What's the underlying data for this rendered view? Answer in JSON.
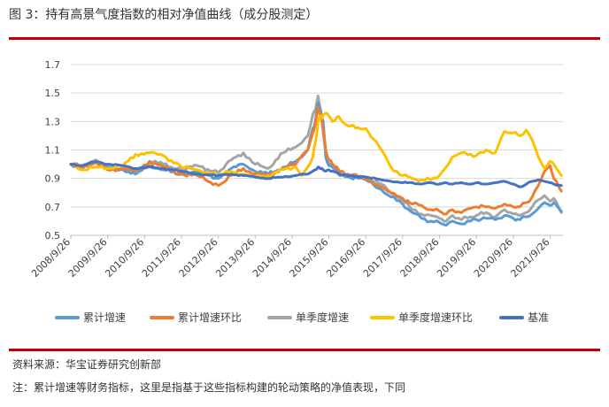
{
  "header": {
    "title": "图 3：持有高景气度指数的相对净值曲线（成分股测定）"
  },
  "footer": {
    "source": "资料来源：华宝证券研究创新部",
    "note": "注：累计增速等财务指标，这里是指基于这些指标构建的轮动策略的净值表现，下同"
  },
  "chart_data": {
    "type": "line",
    "title": "",
    "xlabel": "",
    "ylabel": "",
    "ylim": [
      0.5,
      1.7
    ],
    "yticks": [
      "0.5",
      "0.7",
      "0.9",
      "1.1",
      "1.3",
      "1.5",
      "1.7"
    ],
    "xticks": [
      "2008/9/26",
      "2009/9/26",
      "2010/9/26",
      "2011/9/26",
      "2012/9/26",
      "2013/9/26",
      "2014/9/26",
      "2015/9/26",
      "2016/9/26",
      "2017/9/26",
      "2018/9/26",
      "2019/9/26",
      "2020/9/26",
      "2021/9/26"
    ],
    "xlim": [
      "2008/9/26",
      "2022/1/31"
    ],
    "grid": "horizontal",
    "legend_position": "bottom",
    "series": [
      {
        "name": "累计增速",
        "color": "#5b9bd5",
        "points": [
          [
            "2008/9/26",
            1.0
          ],
          [
            "2009/1/15",
            0.97
          ],
          [
            "2009/6/1",
            1.02
          ],
          [
            "2009/9/26",
            0.98
          ],
          [
            "2010/3/1",
            0.96
          ],
          [
            "2010/7/1",
            0.93
          ],
          [
            "2010/11/15",
            0.99
          ],
          [
            "2011/4/1",
            0.96
          ],
          [
            "2011/9/26",
            0.93
          ],
          [
            "2012/3/1",
            0.95
          ],
          [
            "2012/9/26",
            0.9
          ],
          [
            "2013/2/1",
            0.97
          ],
          [
            "2013/6/1",
            1.0
          ],
          [
            "2013/9/26",
            0.95
          ],
          [
            "2014/2/1",
            0.93
          ],
          [
            "2014/7/1",
            0.98
          ],
          [
            "2014/11/1",
            1.02
          ],
          [
            "2015/1/1",
            1.05
          ],
          [
            "2015/3/1",
            1.1
          ],
          [
            "2015/4/20",
            1.25
          ],
          [
            "2015/5/15",
            1.3
          ],
          [
            "2015/6/12",
            1.43
          ],
          [
            "2015/7/1",
            1.38
          ],
          [
            "2015/7/20",
            1.33
          ],
          [
            "2015/8/1",
            1.3
          ],
          [
            "2015/8/26",
            1.05
          ],
          [
            "2015/9/26",
            0.99
          ],
          [
            "2015/11/1",
            0.98
          ],
          [
            "2015/12/15",
            0.96
          ],
          [
            "2016/1/15",
            0.92
          ],
          [
            "2016/4/1",
            0.91
          ],
          [
            "2016/9/26",
            0.89
          ],
          [
            "2017/3/1",
            0.82
          ],
          [
            "2017/6/1",
            0.77
          ],
          [
            "2017/9/26",
            0.72
          ],
          [
            "2018/1/1",
            0.66
          ],
          [
            "2018/4/1",
            0.62
          ],
          [
            "2018/7/1",
            0.6
          ],
          [
            "2018/9/26",
            0.59
          ],
          [
            "2018/12/1",
            0.57
          ],
          [
            "2019/2/1",
            0.6
          ],
          [
            "2019/5/1",
            0.58
          ],
          [
            "2019/8/1",
            0.6
          ],
          [
            "2019/9/26",
            0.61
          ],
          [
            "2020/1/1",
            0.62
          ],
          [
            "2020/4/1",
            0.61
          ],
          [
            "2020/7/1",
            0.64
          ],
          [
            "2020/9/26",
            0.62
          ],
          [
            "2020/12/1",
            0.61
          ],
          [
            "2021/2/1",
            0.63
          ],
          [
            "2021/4/1",
            0.65
          ],
          [
            "2021/6/1",
            0.69
          ],
          [
            "2021/8/1",
            0.73
          ],
          [
            "2021/9/26",
            0.71
          ],
          [
            "2021/11/1",
            0.73
          ],
          [
            "2022/1/15",
            0.67
          ]
        ]
      },
      {
        "name": "累计增速环比",
        "color": "#ed7d31",
        "points": [
          [
            "2008/9/26",
            1.0
          ],
          [
            "2009/1/15",
            0.98
          ],
          [
            "2009/6/1",
            1.01
          ],
          [
            "2009/9/26",
            0.96
          ],
          [
            "2010/3/1",
            0.97
          ],
          [
            "2010/7/1",
            0.95
          ],
          [
            "2010/11/15",
            1.02
          ],
          [
            "2011/4/1",
            0.98
          ],
          [
            "2011/9/26",
            0.93
          ],
          [
            "2012/3/1",
            0.92
          ],
          [
            "2012/9/26",
            0.85
          ],
          [
            "2013/2/1",
            0.92
          ],
          [
            "2013/6/1",
            0.97
          ],
          [
            "2013/9/26",
            0.93
          ],
          [
            "2014/2/1",
            0.92
          ],
          [
            "2014/7/1",
            0.97
          ],
          [
            "2014/11/1",
            1.0
          ],
          [
            "2015/1/1",
            1.06
          ],
          [
            "2015/3/1",
            1.1
          ],
          [
            "2015/4/20",
            1.22
          ],
          [
            "2015/5/15",
            1.28
          ],
          [
            "2015/6/12",
            1.4
          ],
          [
            "2015/7/1",
            1.35
          ],
          [
            "2015/7/20",
            1.3
          ],
          [
            "2015/8/1",
            1.25
          ],
          [
            "2015/8/26",
            1.1
          ],
          [
            "2015/9/26",
            1.03
          ],
          [
            "2015/11/1",
            1.0
          ],
          [
            "2015/12/15",
            0.98
          ],
          [
            "2016/1/15",
            0.95
          ],
          [
            "2016/4/1",
            0.93
          ],
          [
            "2016/9/26",
            0.9
          ],
          [
            "2017/3/1",
            0.84
          ],
          [
            "2017/6/1",
            0.8
          ],
          [
            "2017/9/26",
            0.76
          ],
          [
            "2018/1/1",
            0.72
          ],
          [
            "2018/4/1",
            0.71
          ],
          [
            "2018/7/1",
            0.68
          ],
          [
            "2018/9/26",
            0.67
          ],
          [
            "2018/12/1",
            0.65
          ],
          [
            "2019/2/1",
            0.68
          ],
          [
            "2019/5/1",
            0.66
          ],
          [
            "2019/8/1",
            0.69
          ],
          [
            "2019/9/26",
            0.7
          ],
          [
            "2020/1/1",
            0.7
          ],
          [
            "2020/4/1",
            0.69
          ],
          [
            "2020/7/1",
            0.72
          ],
          [
            "2020/9/26",
            0.7
          ],
          [
            "2020/12/1",
            0.7
          ],
          [
            "2021/2/1",
            0.73
          ],
          [
            "2021/4/1",
            0.77
          ],
          [
            "2021/6/1",
            0.85
          ],
          [
            "2021/8/1",
            0.95
          ],
          [
            "2021/9/26",
            0.99
          ],
          [
            "2021/11/1",
            0.9
          ],
          [
            "2022/1/15",
            0.81
          ]
        ]
      },
      {
        "name": "单季度增速",
        "color": "#a5a5a5",
        "points": [
          [
            "2008/9/26",
            1.0
          ],
          [
            "2009/1/15",
            0.99
          ],
          [
            "2009/6/1",
            1.03
          ],
          [
            "2009/9/26",
            0.97
          ],
          [
            "2010/3/1",
            0.96
          ],
          [
            "2010/7/1",
            0.93
          ],
          [
            "2010/11/15",
            1.02
          ],
          [
            "2011/4/1",
            1.0
          ],
          [
            "2011/9/26",
            0.96
          ],
          [
            "2012/3/1",
            0.99
          ],
          [
            "2012/9/26",
            0.94
          ],
          [
            "2013/2/1",
            1.03
          ],
          [
            "2013/6/1",
            1.08
          ],
          [
            "2013/9/26",
            1.0
          ],
          [
            "2014/2/1",
            0.97
          ],
          [
            "2014/7/1",
            1.08
          ],
          [
            "2014/11/1",
            1.12
          ],
          [
            "2015/1/1",
            1.15
          ],
          [
            "2015/3/1",
            1.2
          ],
          [
            "2015/4/20",
            1.35
          ],
          [
            "2015/5/15",
            1.38
          ],
          [
            "2015/6/12",
            1.48
          ],
          [
            "2015/7/1",
            1.4
          ],
          [
            "2015/7/20",
            1.32
          ],
          [
            "2015/8/1",
            1.22
          ],
          [
            "2015/8/26",
            1.08
          ],
          [
            "2015/9/26",
            1.0
          ],
          [
            "2015/11/1",
            0.98
          ],
          [
            "2015/12/15",
            0.95
          ],
          [
            "2016/1/15",
            0.93
          ],
          [
            "2016/4/1",
            0.92
          ],
          [
            "2016/9/26",
            0.91
          ],
          [
            "2017/3/1",
            0.86
          ],
          [
            "2017/6/1",
            0.8
          ],
          [
            "2017/9/26",
            0.75
          ],
          [
            "2018/1/1",
            0.68
          ],
          [
            "2018/4/1",
            0.65
          ],
          [
            "2018/7/1",
            0.64
          ],
          [
            "2018/9/26",
            0.62
          ],
          [
            "2018/12/1",
            0.6
          ],
          [
            "2019/2/1",
            0.64
          ],
          [
            "2019/5/1",
            0.61
          ],
          [
            "2019/8/1",
            0.63
          ],
          [
            "2019/9/26",
            0.64
          ],
          [
            "2020/1/1",
            0.66
          ],
          [
            "2020/4/1",
            0.63
          ],
          [
            "2020/7/1",
            0.68
          ],
          [
            "2020/9/26",
            0.65
          ],
          [
            "2020/12/1",
            0.64
          ],
          [
            "2021/2/1",
            0.66
          ],
          [
            "2021/4/1",
            0.7
          ],
          [
            "2021/6/1",
            0.75
          ],
          [
            "2021/8/1",
            0.78
          ],
          [
            "2021/9/26",
            0.74
          ],
          [
            "2021/11/1",
            0.76
          ],
          [
            "2022/1/15",
            0.66
          ]
        ]
      },
      {
        "name": "单季度增速环比",
        "color": "#ffc000",
        "points": [
          [
            "2008/9/26",
            1.0
          ],
          [
            "2009/1/15",
            0.96
          ],
          [
            "2009/6/1",
            0.98
          ],
          [
            "2009/9/26",
            0.97
          ],
          [
            "2010/3/1",
            0.99
          ],
          [
            "2010/7/1",
            1.07
          ],
          [
            "2010/11/15",
            1.08
          ],
          [
            "2011/4/1",
            1.06
          ],
          [
            "2011/9/26",
            0.98
          ],
          [
            "2012/3/1",
            0.96
          ],
          [
            "2012/9/26",
            0.92
          ],
          [
            "2013/2/1",
            0.95
          ],
          [
            "2013/6/1",
            0.93
          ],
          [
            "2013/9/26",
            0.91
          ],
          [
            "2014/2/1",
            0.92
          ],
          [
            "2014/7/1",
            0.96
          ],
          [
            "2014/11/1",
            0.98
          ],
          [
            "2015/1/1",
            0.92
          ],
          [
            "2015/3/1",
            0.98
          ],
          [
            "2015/4/20",
            1.05
          ],
          [
            "2015/5/15",
            1.15
          ],
          [
            "2015/6/12",
            1.3
          ],
          [
            "2015/7/1",
            1.34
          ],
          [
            "2015/7/20",
            1.32
          ],
          [
            "2015/8/1",
            1.35
          ],
          [
            "2015/8/26",
            1.36
          ],
          [
            "2015/9/26",
            1.34
          ],
          [
            "2015/11/1",
            1.3
          ],
          [
            "2015/12/15",
            1.33
          ],
          [
            "2016/1/15",
            1.32
          ],
          [
            "2016/4/1",
            1.27
          ],
          [
            "2016/9/26",
            1.25
          ],
          [
            "2017/3/1",
            1.1
          ],
          [
            "2017/6/1",
            0.98
          ],
          [
            "2017/9/26",
            0.92
          ],
          [
            "2018/1/1",
            0.9
          ],
          [
            "2018/4/1",
            0.89
          ],
          [
            "2018/7/1",
            0.89
          ],
          [
            "2018/9/26",
            0.92
          ],
          [
            "2018/12/1",
            0.98
          ],
          [
            "2019/2/1",
            1.05
          ],
          [
            "2019/5/1",
            1.08
          ],
          [
            "2019/8/1",
            1.07
          ],
          [
            "2019/9/26",
            1.06
          ],
          [
            "2020/1/1",
            1.1
          ],
          [
            "2020/4/1",
            1.08
          ],
          [
            "2020/7/1",
            1.23
          ],
          [
            "2020/9/26",
            1.22
          ],
          [
            "2020/12/1",
            1.2
          ],
          [
            "2021/2/1",
            1.24
          ],
          [
            "2021/4/1",
            1.17
          ],
          [
            "2021/6/1",
            1.05
          ],
          [
            "2021/8/1",
            0.97
          ],
          [
            "2021/9/26",
            1.02
          ],
          [
            "2021/11/1",
            1.0
          ],
          [
            "2022/1/15",
            0.92
          ]
        ]
      },
      {
        "name": "基准",
        "color": "#4472c4",
        "points": [
          [
            "2008/9/26",
            1.0
          ],
          [
            "2009/1/15",
            0.99
          ],
          [
            "2009/6/1",
            1.02
          ],
          [
            "2009/9/26",
            1.0
          ],
          [
            "2010/3/1",
            0.99
          ],
          [
            "2010/7/1",
            0.97
          ],
          [
            "2010/11/15",
            0.98
          ],
          [
            "2011/4/1",
            0.97
          ],
          [
            "2011/9/26",
            0.95
          ],
          [
            "2012/3/1",
            0.93
          ],
          [
            "2012/9/26",
            0.92
          ],
          [
            "2013/2/1",
            0.93
          ],
          [
            "2013/6/1",
            0.92
          ],
          [
            "2013/9/26",
            0.91
          ],
          [
            "2014/2/1",
            0.9
          ],
          [
            "2014/7/1",
            0.91
          ],
          [
            "2014/11/1",
            0.92
          ],
          [
            "2015/1/1",
            0.93
          ],
          [
            "2015/3/1",
            0.93
          ],
          [
            "2015/4/20",
            0.95
          ],
          [
            "2015/5/15",
            0.96
          ],
          [
            "2015/6/12",
            0.98
          ],
          [
            "2015/7/1",
            0.97
          ],
          [
            "2015/7/20",
            0.97
          ],
          [
            "2015/8/1",
            0.96
          ],
          [
            "2015/8/26",
            0.95
          ],
          [
            "2015/9/26",
            0.96
          ],
          [
            "2015/11/1",
            0.95
          ],
          [
            "2015/12/15",
            0.94
          ],
          [
            "2016/1/15",
            0.93
          ],
          [
            "2016/4/1",
            0.92
          ],
          [
            "2016/9/26",
            0.91
          ],
          [
            "2017/3/1",
            0.89
          ],
          [
            "2017/6/1",
            0.88
          ],
          [
            "2017/9/26",
            0.87
          ],
          [
            "2018/1/1",
            0.87
          ],
          [
            "2018/4/1",
            0.86
          ],
          [
            "2018/7/1",
            0.87
          ],
          [
            "2018/9/26",
            0.86
          ],
          [
            "2018/12/1",
            0.87
          ],
          [
            "2019/2/1",
            0.86
          ],
          [
            "2019/5/1",
            0.87
          ],
          [
            "2019/8/1",
            0.86
          ],
          [
            "2019/9/26",
            0.87
          ],
          [
            "2020/1/1",
            0.86
          ],
          [
            "2020/4/1",
            0.87
          ],
          [
            "2020/7/1",
            0.88
          ],
          [
            "2020/9/26",
            0.86
          ],
          [
            "2020/12/1",
            0.84
          ],
          [
            "2021/2/1",
            0.86
          ],
          [
            "2021/4/1",
            0.88
          ],
          [
            "2021/6/1",
            0.89
          ],
          [
            "2021/8/1",
            0.88
          ],
          [
            "2021/9/26",
            0.87
          ],
          [
            "2021/11/1",
            0.86
          ],
          [
            "2022/1/15",
            0.85
          ]
        ]
      }
    ]
  }
}
